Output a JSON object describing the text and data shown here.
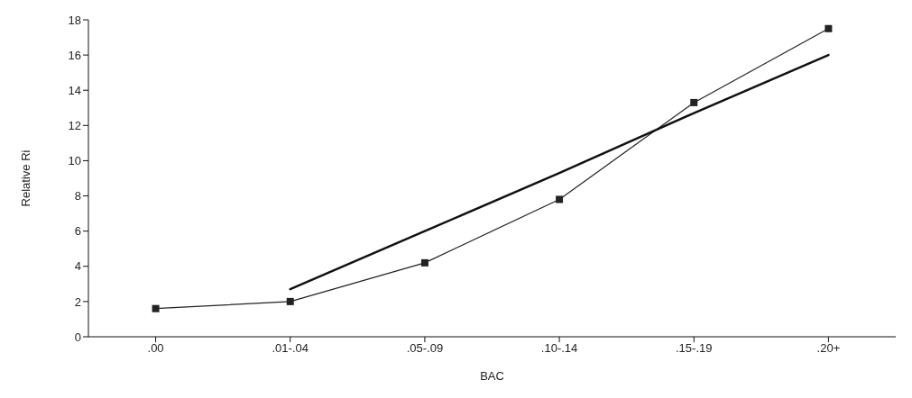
{
  "chart_data": {
    "type": "line",
    "xlabel": "BAC",
    "ylabel": "Relative Ri",
    "categories": [
      ".00",
      ".01-.04",
      ".05-.09",
      ".10-.14",
      ".15-.19",
      ".20+"
    ],
    "series": [
      {
        "color": "#222222",
        "marker": "square",
        "values": [
          1.6,
          2.0,
          4.2,
          7.8,
          13.3,
          17.5
        ]
      },
      {
        "color": "#111111",
        "marker": "none",
        "values": [
          null,
          2.7,
          6.0,
          9.3,
          12.7,
          16.0
        ]
      }
    ],
    "ylim": [
      0,
      18
    ],
    "yticks": [
      0,
      2,
      4,
      6,
      8,
      10,
      12,
      14,
      16,
      18
    ],
    "grid": false,
    "legend": false,
    "line_style": "solid"
  }
}
